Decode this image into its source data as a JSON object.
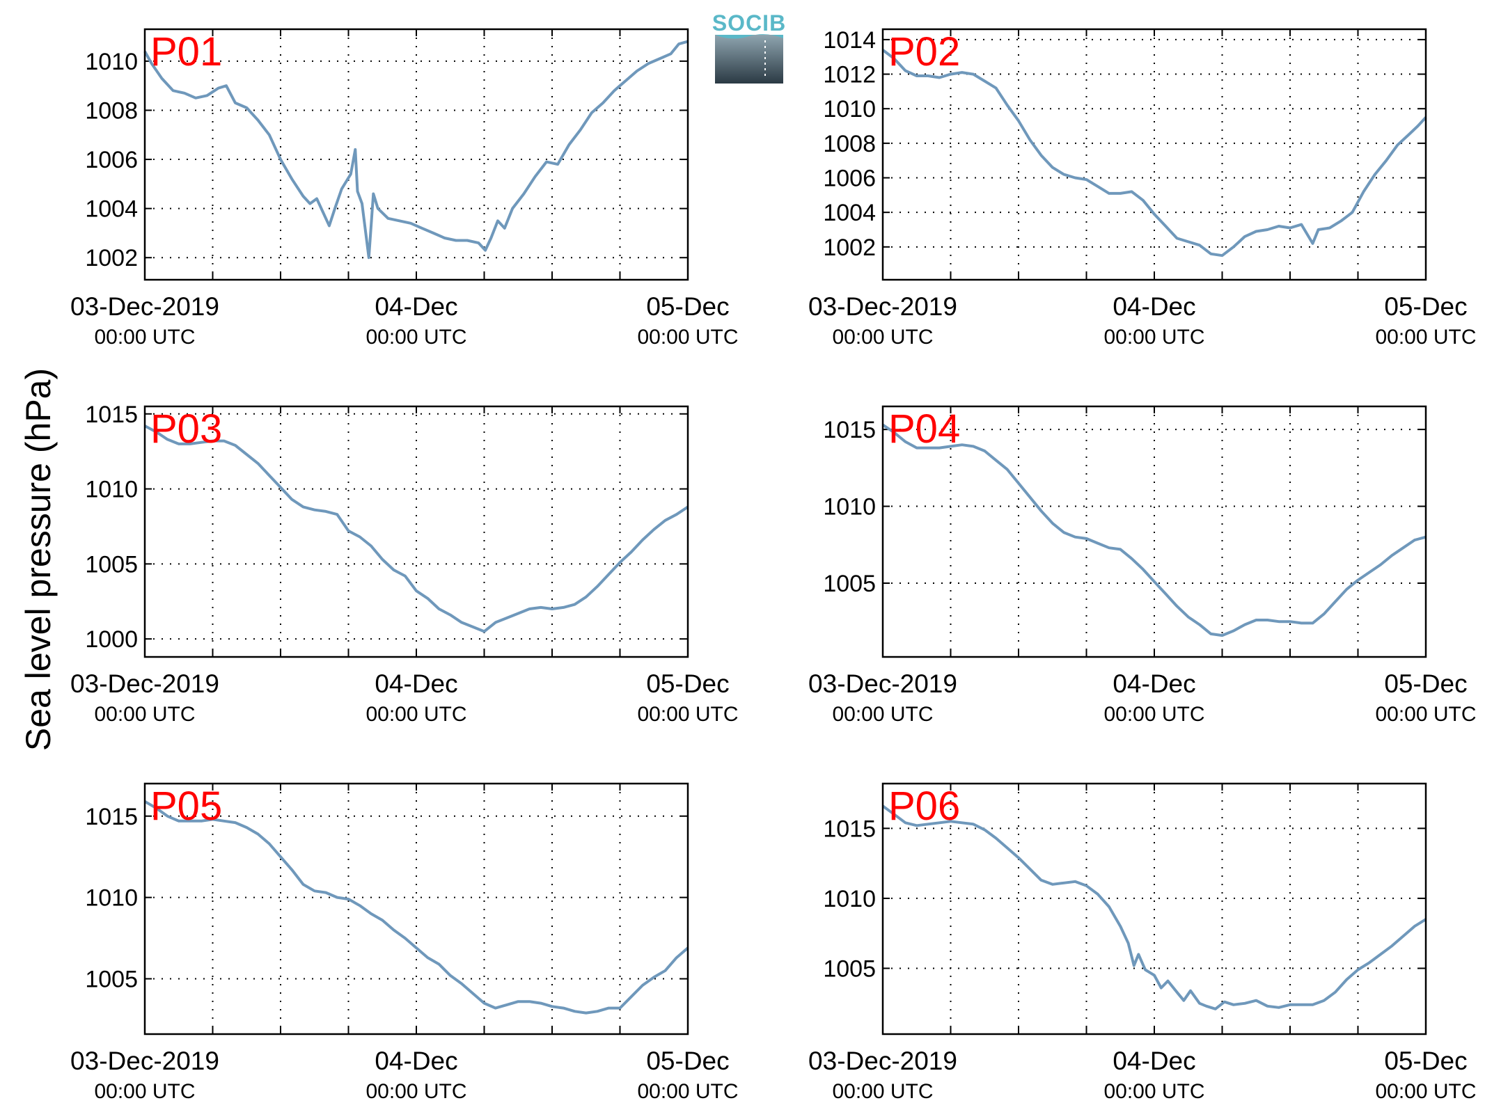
{
  "ylabel": "Sea level pressure (hPa)",
  "logo": {
    "text": "SOCIB",
    "colors": {
      "top": "#5ab8c8",
      "bottom": "#2b3a44"
    }
  },
  "line_color": "#6f98bb",
  "panel_label_color": "#ff0000",
  "x_ticks": [
    {
      "label": "03-Dec-2019",
      "sub": "00:00 UTC",
      "t": 0
    },
    {
      "label": "04-Dec",
      "sub": "00:00 UTC",
      "t": 24
    },
    {
      "label": "05-Dec",
      "sub": "00:00 UTC",
      "t": 48
    }
  ],
  "chart_data": [
    {
      "type": "line",
      "name": "P01",
      "ylim": [
        1001.1,
        1011.3
      ],
      "yticks": [
        1002,
        1004,
        1006,
        1008,
        1010
      ],
      "xlim": [
        0,
        48
      ],
      "grid": true,
      "points": [
        [
          0,
          1010.4
        ],
        [
          0.6,
          1009.9
        ],
        [
          1.5,
          1009.3
        ],
        [
          2.5,
          1008.8
        ],
        [
          3.5,
          1008.7
        ],
        [
          4.5,
          1008.5
        ],
        [
          5.5,
          1008.6
        ],
        [
          6.5,
          1008.9
        ],
        [
          7.2,
          1009.0
        ],
        [
          8,
          1008.3
        ],
        [
          9,
          1008.1
        ],
        [
          10,
          1007.6
        ],
        [
          11,
          1007.0
        ],
        [
          12,
          1006.0
        ],
        [
          13,
          1005.2
        ],
        [
          14,
          1004.5
        ],
        [
          14.6,
          1004.2
        ],
        [
          15.2,
          1004.4
        ],
        [
          16.3,
          1003.3
        ],
        [
          16.8,
          1004.0
        ],
        [
          17.4,
          1004.8
        ],
        [
          18.2,
          1005.4
        ],
        [
          18.6,
          1006.4
        ],
        [
          18.8,
          1004.7
        ],
        [
          19.2,
          1004.2
        ],
        [
          19.8,
          1002.0
        ],
        [
          20.2,
          1004.6
        ],
        [
          20.6,
          1004.0
        ],
        [
          21.5,
          1003.6
        ],
        [
          22.5,
          1003.5
        ],
        [
          23.5,
          1003.4
        ],
        [
          24.5,
          1003.2
        ],
        [
          25.5,
          1003.0
        ],
        [
          26.5,
          1002.8
        ],
        [
          27.5,
          1002.7
        ],
        [
          28.5,
          1002.7
        ],
        [
          29.5,
          1002.6
        ],
        [
          30.1,
          1002.3
        ],
        [
          30.6,
          1002.8
        ],
        [
          31.2,
          1003.5
        ],
        [
          31.8,
          1003.2
        ],
        [
          32.5,
          1004.0
        ],
        [
          33.5,
          1004.6
        ],
        [
          34.5,
          1005.3
        ],
        [
          35.5,
          1005.9
        ],
        [
          36.5,
          1005.8
        ],
        [
          37.5,
          1006.6
        ],
        [
          38.5,
          1007.2
        ],
        [
          39.5,
          1007.9
        ],
        [
          40.5,
          1008.3
        ],
        [
          41.5,
          1008.8
        ],
        [
          42.5,
          1009.2
        ],
        [
          43.5,
          1009.6
        ],
        [
          44.5,
          1009.9
        ],
        [
          45.5,
          1010.1
        ],
        [
          46.5,
          1010.3
        ],
        [
          47.2,
          1010.7
        ],
        [
          48,
          1010.8
        ]
      ]
    },
    {
      "type": "line",
      "name": "P02",
      "ylim": [
        1000.1,
        1014.6
      ],
      "yticks": [
        1002,
        1004,
        1006,
        1008,
        1010,
        1012,
        1014
      ],
      "xlim": [
        0,
        48
      ],
      "grid": true,
      "points": [
        [
          0,
          1013.4
        ],
        [
          1,
          1012.9
        ],
        [
          2,
          1012.2
        ],
        [
          3,
          1011.9
        ],
        [
          4,
          1011.9
        ],
        [
          5,
          1011.8
        ],
        [
          6,
          1012.0
        ],
        [
          7,
          1012.1
        ],
        [
          8,
          1012.0
        ],
        [
          9,
          1011.6
        ],
        [
          10,
          1011.2
        ],
        [
          11,
          1010.2
        ],
        [
          12,
          1009.3
        ],
        [
          13,
          1008.2
        ],
        [
          14,
          1007.3
        ],
        [
          15,
          1006.6
        ],
        [
          16,
          1006.2
        ],
        [
          17,
          1006.0
        ],
        [
          18,
          1005.9
        ],
        [
          19,
          1005.5
        ],
        [
          20,
          1005.1
        ],
        [
          21,
          1005.1
        ],
        [
          22,
          1005.2
        ],
        [
          23,
          1004.7
        ],
        [
          24,
          1003.9
        ],
        [
          25,
          1003.2
        ],
        [
          26,
          1002.5
        ],
        [
          27,
          1002.3
        ],
        [
          28,
          1002.1
        ],
        [
          29,
          1001.6
        ],
        [
          30,
          1001.5
        ],
        [
          31,
          1002.0
        ],
        [
          32,
          1002.6
        ],
        [
          33,
          1002.9
        ],
        [
          34,
          1003.0
        ],
        [
          35,
          1003.2
        ],
        [
          36,
          1003.1
        ],
        [
          37,
          1003.3
        ],
        [
          38,
          1002.2
        ],
        [
          38.5,
          1003.0
        ],
        [
          39.5,
          1003.1
        ],
        [
          40.5,
          1003.5
        ],
        [
          41.5,
          1004.0
        ],
        [
          42.5,
          1005.2
        ],
        [
          43.5,
          1006.2
        ],
        [
          44.5,
          1007.0
        ],
        [
          45.5,
          1007.9
        ],
        [
          46.5,
          1008.5
        ],
        [
          47.3,
          1009.0
        ],
        [
          48,
          1009.5
        ]
      ]
    },
    {
      "type": "line",
      "name": "P03",
      "ylim": [
        998.8,
        1015.5
      ],
      "yticks": [
        1000,
        1005,
        1010,
        1015
      ],
      "xlim": [
        0,
        48
      ],
      "grid": true,
      "points": [
        [
          0,
          1014.2
        ],
        [
          1,
          1013.8
        ],
        [
          2,
          1013.3
        ],
        [
          3,
          1013.0
        ],
        [
          4,
          1013.0
        ],
        [
          5,
          1013.1
        ],
        [
          6,
          1013.2
        ],
        [
          7,
          1013.2
        ],
        [
          8,
          1012.9
        ],
        [
          9,
          1012.3
        ],
        [
          10,
          1011.7
        ],
        [
          11,
          1010.9
        ],
        [
          12,
          1010.1
        ],
        [
          13,
          1009.3
        ],
        [
          14,
          1008.8
        ],
        [
          15,
          1008.6
        ],
        [
          16,
          1008.5
        ],
        [
          17,
          1008.3
        ],
        [
          18,
          1007.2
        ],
        [
          19,
          1006.8
        ],
        [
          20,
          1006.2
        ],
        [
          21,
          1005.3
        ],
        [
          22,
          1004.6
        ],
        [
          23,
          1004.2
        ],
        [
          24,
          1003.2
        ],
        [
          25,
          1002.7
        ],
        [
          26,
          1002.0
        ],
        [
          27,
          1001.6
        ],
        [
          28,
          1001.1
        ],
        [
          29,
          1000.8
        ],
        [
          30,
          1000.5
        ],
        [
          31,
          1001.1
        ],
        [
          32,
          1001.4
        ],
        [
          33,
          1001.7
        ],
        [
          34,
          1002.0
        ],
        [
          35,
          1002.1
        ],
        [
          36,
          1002.0
        ],
        [
          37,
          1002.1
        ],
        [
          38,
          1002.3
        ],
        [
          39,
          1002.8
        ],
        [
          40,
          1003.5
        ],
        [
          41,
          1004.3
        ],
        [
          42,
          1005.1
        ],
        [
          43,
          1005.8
        ],
        [
          44,
          1006.6
        ],
        [
          45,
          1007.3
        ],
        [
          46,
          1007.9
        ],
        [
          47,
          1008.3
        ],
        [
          48,
          1008.8
        ]
      ]
    },
    {
      "type": "line",
      "name": "P04",
      "ylim": [
        1000.2,
        1016.5
      ],
      "yticks": [
        1005,
        1010,
        1015
      ],
      "xlim": [
        0,
        48
      ],
      "grid": true,
      "points": [
        [
          0,
          1015.3
        ],
        [
          1,
          1014.8
        ],
        [
          2,
          1014.2
        ],
        [
          3,
          1013.8
        ],
        [
          4,
          1013.8
        ],
        [
          5,
          1013.8
        ],
        [
          6,
          1013.9
        ],
        [
          7,
          1014.0
        ],
        [
          8,
          1013.9
        ],
        [
          9,
          1013.6
        ],
        [
          10,
          1013.0
        ],
        [
          11,
          1012.4
        ],
        [
          12,
          1011.5
        ],
        [
          13,
          1010.6
        ],
        [
          14,
          1009.7
        ],
        [
          15,
          1008.9
        ],
        [
          16,
          1008.3
        ],
        [
          17,
          1008.0
        ],
        [
          18,
          1007.9
        ],
        [
          19,
          1007.6
        ],
        [
          20,
          1007.3
        ],
        [
          21,
          1007.2
        ],
        [
          22,
          1006.6
        ],
        [
          23,
          1005.9
        ],
        [
          24,
          1005.1
        ],
        [
          25,
          1004.3
        ],
        [
          26,
          1003.5
        ],
        [
          27,
          1002.8
        ],
        [
          28,
          1002.3
        ],
        [
          29,
          1001.7
        ],
        [
          30,
          1001.6
        ],
        [
          31,
          1001.9
        ],
        [
          32,
          1002.3
        ],
        [
          33,
          1002.6
        ],
        [
          34,
          1002.6
        ],
        [
          35,
          1002.5
        ],
        [
          36,
          1002.5
        ],
        [
          37,
          1002.4
        ],
        [
          38,
          1002.4
        ],
        [
          39,
          1003.0
        ],
        [
          40,
          1003.8
        ],
        [
          41,
          1004.6
        ],
        [
          42,
          1005.2
        ],
        [
          43,
          1005.7
        ],
        [
          44,
          1006.2
        ],
        [
          45,
          1006.8
        ],
        [
          46,
          1007.3
        ],
        [
          47,
          1007.8
        ],
        [
          48,
          1008.0
        ]
      ]
    },
    {
      "type": "line",
      "name": "P05",
      "ylim": [
        1001.6,
        1017.0
      ],
      "yticks": [
        1005,
        1010,
        1015
      ],
      "xlim": [
        0,
        48
      ],
      "grid": true,
      "points": [
        [
          0,
          1015.9
        ],
        [
          1,
          1015.5
        ],
        [
          2,
          1015.0
        ],
        [
          3,
          1014.7
        ],
        [
          4,
          1014.7
        ],
        [
          5,
          1014.7
        ],
        [
          6,
          1014.8
        ],
        [
          7,
          1014.7
        ],
        [
          8,
          1014.6
        ],
        [
          9,
          1014.3
        ],
        [
          10,
          1013.9
        ],
        [
          11,
          1013.3
        ],
        [
          12,
          1012.5
        ],
        [
          13,
          1011.7
        ],
        [
          14,
          1010.8
        ],
        [
          15,
          1010.4
        ],
        [
          16,
          1010.3
        ],
        [
          17,
          1010.0
        ],
        [
          18,
          1009.9
        ],
        [
          19,
          1009.5
        ],
        [
          20,
          1009.0
        ],
        [
          21,
          1008.6
        ],
        [
          22,
          1008.0
        ],
        [
          23,
          1007.5
        ],
        [
          24,
          1006.9
        ],
        [
          25,
          1006.3
        ],
        [
          26,
          1005.9
        ],
        [
          27,
          1005.2
        ],
        [
          28,
          1004.7
        ],
        [
          29,
          1004.1
        ],
        [
          30,
          1003.5
        ],
        [
          31,
          1003.2
        ],
        [
          32,
          1003.4
        ],
        [
          33,
          1003.6
        ],
        [
          34,
          1003.6
        ],
        [
          35,
          1003.5
        ],
        [
          36,
          1003.3
        ],
        [
          37,
          1003.2
        ],
        [
          38,
          1003.0
        ],
        [
          39,
          1002.9
        ],
        [
          40,
          1003.0
        ],
        [
          41,
          1003.2
        ],
        [
          42,
          1003.2
        ],
        [
          43,
          1003.9
        ],
        [
          44,
          1004.6
        ],
        [
          45,
          1005.1
        ],
        [
          46,
          1005.5
        ],
        [
          47,
          1006.3
        ],
        [
          48,
          1006.9
        ]
      ]
    },
    {
      "type": "line",
      "name": "P06",
      "ylim": [
        1000.3,
        1018.2
      ],
      "yticks": [
        1005,
        1010,
        1015
      ],
      "xlim": [
        0,
        48
      ],
      "grid": true,
      "points": [
        [
          0,
          1016.6
        ],
        [
          1,
          1016.0
        ],
        [
          2,
          1015.4
        ],
        [
          3,
          1015.2
        ],
        [
          4,
          1015.3
        ],
        [
          5,
          1015.4
        ],
        [
          6,
          1015.5
        ],
        [
          7,
          1015.4
        ],
        [
          8,
          1015.3
        ],
        [
          9,
          1014.9
        ],
        [
          10,
          1014.3
        ],
        [
          11,
          1013.6
        ],
        [
          12,
          1012.9
        ],
        [
          13,
          1012.1
        ],
        [
          14,
          1011.3
        ],
        [
          15,
          1011.0
        ],
        [
          16,
          1011.1
        ],
        [
          17,
          1011.2
        ],
        [
          18,
          1010.9
        ],
        [
          19,
          1010.3
        ],
        [
          20,
          1009.4
        ],
        [
          21,
          1008.0
        ],
        [
          21.7,
          1006.8
        ],
        [
          22.2,
          1005.2
        ],
        [
          22.6,
          1006.0
        ],
        [
          23.2,
          1004.9
        ],
        [
          24,
          1004.5
        ],
        [
          24.6,
          1003.6
        ],
        [
          25.2,
          1004.1
        ],
        [
          26,
          1003.3
        ],
        [
          26.6,
          1002.7
        ],
        [
          27.2,
          1003.4
        ],
        [
          28,
          1002.5
        ],
        [
          28.6,
          1002.3
        ],
        [
          29.4,
          1002.1
        ],
        [
          30.2,
          1002.6
        ],
        [
          31,
          1002.4
        ],
        [
          32,
          1002.5
        ],
        [
          33,
          1002.7
        ],
        [
          34,
          1002.3
        ],
        [
          35,
          1002.2
        ],
        [
          36,
          1002.4
        ],
        [
          37,
          1002.4
        ],
        [
          38,
          1002.4
        ],
        [
          39,
          1002.7
        ],
        [
          40,
          1003.3
        ],
        [
          41,
          1004.2
        ],
        [
          42,
          1004.9
        ],
        [
          43,
          1005.4
        ],
        [
          44,
          1006.0
        ],
        [
          45,
          1006.6
        ],
        [
          46,
          1007.3
        ],
        [
          47,
          1008.0
        ],
        [
          48,
          1008.5
        ]
      ]
    }
  ]
}
